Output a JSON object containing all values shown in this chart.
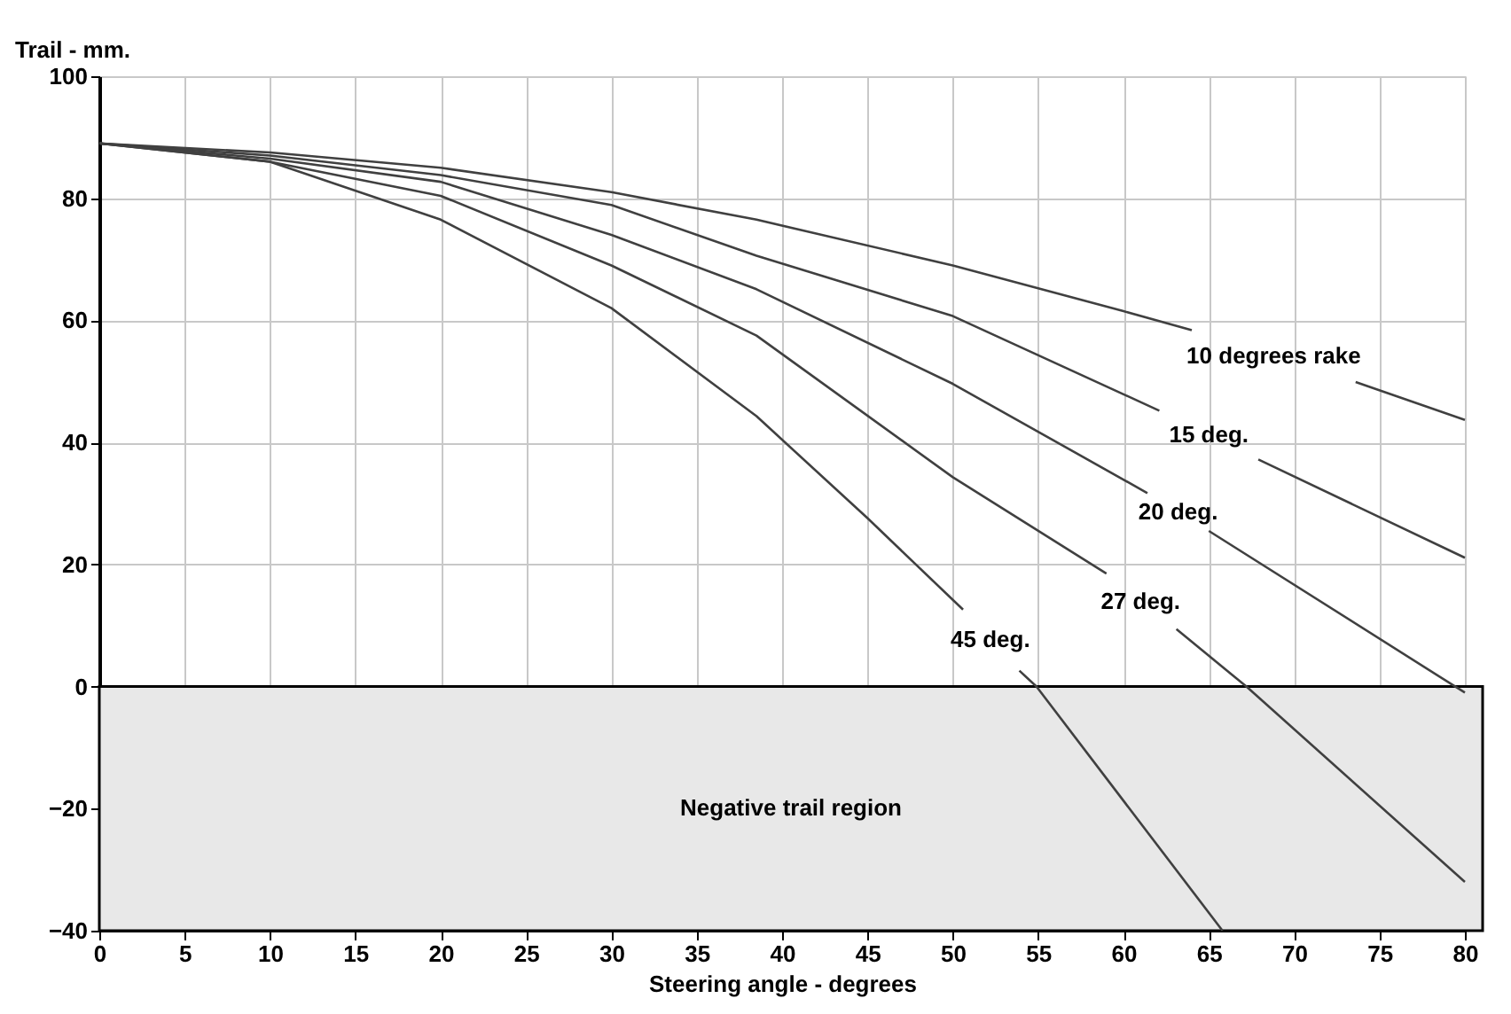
{
  "chart_data": {
    "type": "line",
    "xlabel": "Steering angle - degrees",
    "ylabel": "Trail - mm.",
    "xlim": [
      0,
      80
    ],
    "ylim": [
      -40,
      100
    ],
    "xticks": [
      0,
      5,
      10,
      15,
      20,
      25,
      30,
      35,
      40,
      45,
      50,
      55,
      60,
      65,
      70,
      75,
      80
    ],
    "yticks": [
      -40,
      -20,
      0,
      20,
      40,
      60,
      80,
      100
    ],
    "grid": true,
    "line_style": "solid",
    "marker": "none",
    "series": [
      {
        "name": "10 degrees rake",
        "color": "#404040",
        "x": [
          0,
          10,
          20,
          30,
          38.5,
          50,
          60,
          64,
          68.8,
          73.6,
          80
        ],
        "values": [
          89,
          87.5,
          85,
          81,
          76.5,
          69,
          61.5,
          58.4,
          null,
          49.9,
          43.7
        ]
      },
      {
        "name": "15 deg.",
        "color": "#404040",
        "x": [
          0,
          10,
          20,
          30,
          38.5,
          50,
          62.1,
          65,
          67.9,
          80
        ],
        "values": [
          89,
          87,
          83.8,
          78.9,
          70.6,
          60.7,
          45.2,
          null,
          37.2,
          21.1
        ]
      },
      {
        "name": "20 deg.",
        "color": "#404040",
        "x": [
          0,
          10,
          20,
          30,
          38.5,
          50,
          61.4,
          63.2,
          65,
          80
        ],
        "values": [
          89,
          86.5,
          82.7,
          74,
          65.1,
          49.6,
          31.7,
          null,
          25.5,
          -1
        ]
      },
      {
        "name": "27 deg.",
        "color": "#404040",
        "x": [
          0,
          10,
          20,
          30,
          38.5,
          50,
          59,
          61,
          63.1,
          67.2,
          80
        ],
        "values": [
          89,
          86,
          80.4,
          69,
          57.5,
          34.3,
          18.5,
          null,
          9.4,
          0,
          -32
        ]
      },
      {
        "name": "45 deg.",
        "color": "#404040",
        "x": [
          0,
          10,
          20,
          30,
          38.5,
          45,
          50.6,
          52.2,
          53.9,
          54.9,
          65.8
        ],
        "values": [
          89,
          86,
          76.5,
          62,
          44.3,
          27.6,
          12.6,
          null,
          2.6,
          0,
          -40
        ]
      }
    ],
    "bands": [
      {
        "axis": "y",
        "from": -40,
        "to": 0,
        "label": "Negative trail region",
        "color": "#e8e8e8"
      }
    ]
  }
}
